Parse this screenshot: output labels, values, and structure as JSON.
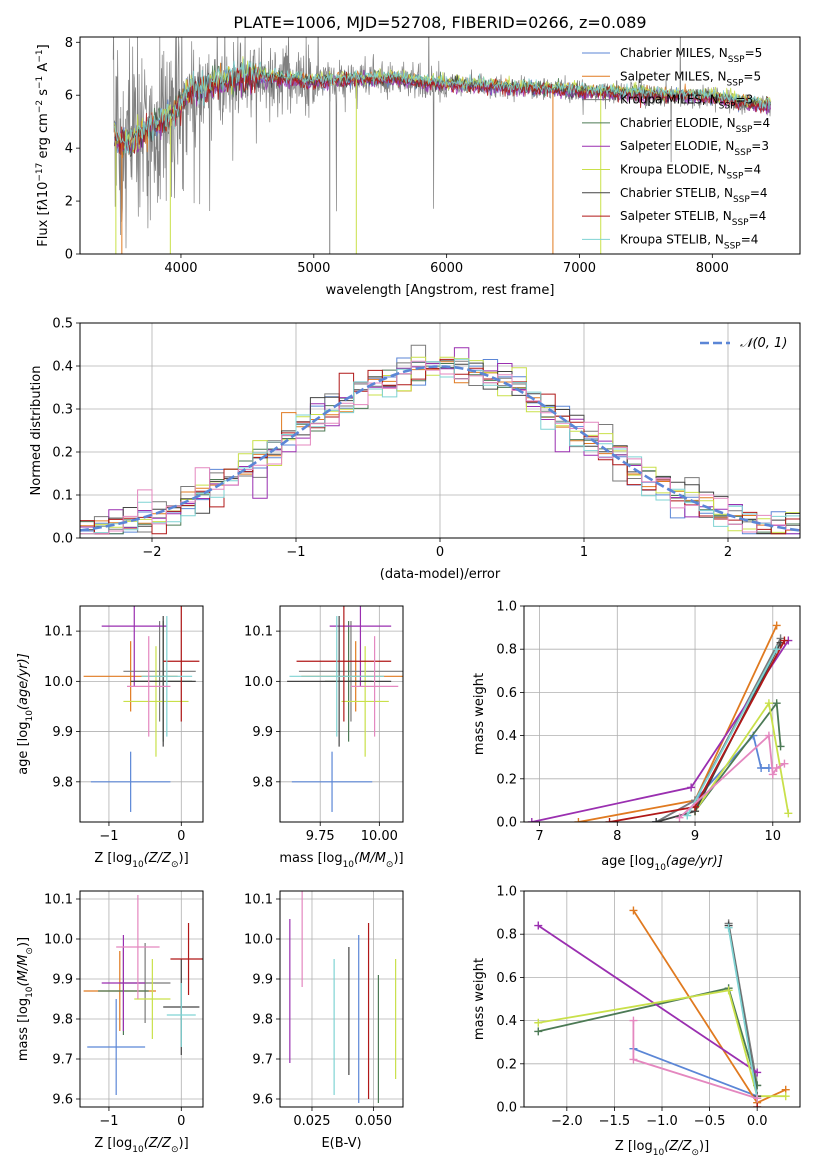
{
  "figure": {
    "title": "PLATE=1006, MJD=52708, FIBERID=0266, z=0.089"
  },
  "colors": {
    "Chabrier MILES": "#5b86d6",
    "Salpeter MILES": "#e07a20",
    "Kroupa MILES": "#7a7a7a",
    "Chabrier ELODIE": "#4c7a55",
    "Salpeter ELODIE": "#9a2fb0",
    "Kroupa ELODIE": "#c9e04a",
    "Chabrier STELIB": "#444444",
    "Salpeter STELIB": "#b01818",
    "Kroupa STELIB": "#7fd3d3",
    "extra": "#e487bf",
    "normal": "#5b86d6"
  },
  "chart_data": [
    {
      "id": "spectrum",
      "type": "line",
      "title": "PLATE=1006, MJD=52708, FIBERID=0266, z=0.089",
      "xlabel": "wavelength [Angstrom, rest frame]",
      "ylabel_parts": [
        "Flux [f",
        "λ",
        "10",
        "−17",
        " erg cm",
        "−2",
        " s",
        "−1",
        " A",
        "−1",
        "]"
      ],
      "xlim": [
        3240,
        8660
      ],
      "ylim": [
        0,
        8.2
      ],
      "xticks": [
        4000,
        5000,
        6000,
        7000,
        8000
      ],
      "yticks": [
        0,
        2,
        4,
        6,
        8
      ],
      "series": [
        {
          "name": "Chabrier MILES",
          "sub": "SSP",
          "n": 5
        },
        {
          "name": "Salpeter MILES",
          "sub": "SSP",
          "n": 5
        },
        {
          "name": "Kroupa MILES",
          "sub": "SSP",
          "n": 3
        },
        {
          "name": "Chabrier ELODIE",
          "sub": "SSP",
          "n": 4
        },
        {
          "name": "Salpeter ELODIE",
          "sub": "SSP",
          "n": 3
        },
        {
          "name": "Kroupa ELODIE",
          "sub": "SSP",
          "n": 4
        },
        {
          "name": "Chabrier STELIB",
          "sub": "SSP",
          "n": 4
        },
        {
          "name": "Salpeter STELIB",
          "sub": "SSP",
          "n": 4
        },
        {
          "name": "Kroupa STELIB",
          "sub": "SSP",
          "n": 4
        }
      ],
      "continuum": [
        [
          3500,
          4.3
        ],
        [
          3600,
          4.1
        ],
        [
          3700,
          4.5
        ],
        [
          3800,
          4.9
        ],
        [
          3950,
          5.3
        ],
        [
          4050,
          6.1
        ],
        [
          4300,
          6.5
        ],
        [
          4600,
          6.7
        ],
        [
          5000,
          6.5
        ],
        [
          5300,
          6.6
        ],
        [
          5600,
          6.6
        ],
        [
          6000,
          6.4
        ],
        [
          6400,
          6.3
        ],
        [
          6800,
          6.2
        ],
        [
          7200,
          6.1
        ],
        [
          7600,
          6.0
        ],
        [
          8000,
          5.9
        ],
        [
          8400,
          5.6
        ]
      ],
      "dropouts": [
        3510,
        3555,
        3920,
        5120,
        5320,
        6800,
        7160
      ]
    },
    {
      "id": "residuals",
      "type": "histogram",
      "xlabel": "(data-model)/error",
      "ylabel": "Normed distribution",
      "xlim": [
        -2.5,
        2.5
      ],
      "ylim": [
        0,
        0.5
      ],
      "xticks": [
        -2,
        -1,
        0,
        1,
        2
      ],
      "yticks": [
        0.0,
        0.1,
        0.2,
        0.3,
        0.4,
        0.5
      ],
      "bin_width": 0.1,
      "normal_label": "𝒩(0, 1)",
      "hist_colors": [
        "Chabrier MILES",
        "Salpeter MILES",
        "Kroupa MILES",
        "Chabrier ELODIE",
        "Salpeter ELODIE",
        "Kroupa ELODIE",
        "Chabrier STELIB",
        "Salpeter STELIB",
        "Kroupa STELIB",
        "extra"
      ]
    },
    {
      "id": "age_vs_Z",
      "type": "scatter",
      "xlabel_parts": [
        "Z [log",
        "10",
        "(Z/Z",
        "⊙",
        ")]"
      ],
      "ylabel_parts": [
        "age  [log",
        "10",
        "(age/yr)]"
      ],
      "xlim": [
        -1.4,
        0.3
      ],
      "ylim": [
        9.72,
        10.15
      ],
      "xticks": [
        -1,
        0
      ],
      "yticks": [
        9.8,
        9.9,
        10.0,
        10.1
      ],
      "points": [
        {
          "c": "Chabrier MILES",
          "x": -0.7,
          "xe": 0.55,
          "y": 9.8,
          "ye": 0.06
        },
        {
          "c": "Salpeter MILES",
          "x": -0.7,
          "xe": 0.65,
          "y": 10.01,
          "ye": 0.07
        },
        {
          "c": "Kroupa MILES",
          "x": -0.3,
          "xe": 0.5,
          "y": 10.02,
          "ye": 0.1
        },
        {
          "c": "Chabrier ELODIE",
          "x": -0.25,
          "xe": 0.4,
          "y": 10.0,
          "ye": 0.12
        },
        {
          "c": "Salpeter ELODIE",
          "x": -0.65,
          "xe": 0.45,
          "y": 10.11,
          "ye": 0.12
        },
        {
          "c": "Kroupa ELODIE",
          "x": -0.35,
          "xe": 0.45,
          "y": 9.96,
          "ye": 0.11
        },
        {
          "c": "Chabrier STELIB",
          "x": -0.25,
          "xe": 0.45,
          "y": 10.0,
          "ye": 0.13
        },
        {
          "c": "Salpeter STELIB",
          "x": 0.0,
          "xe": 0.25,
          "y": 10.04,
          "ye": 0.12
        },
        {
          "c": "Kroupa STELIB",
          "x": -0.2,
          "xe": 0.35,
          "y": 10.01,
          "ye": 0.12
        },
        {
          "c": "extra",
          "x": -0.45,
          "xe": 0.3,
          "y": 9.99,
          "ye": 0.1
        }
      ]
    },
    {
      "id": "age_vs_mass",
      "type": "scatter",
      "xlabel_parts": [
        "mass [log",
        "10",
        "(M/M",
        "⊙",
        ")]"
      ],
      "ylabel_parts": [],
      "xlim": [
        9.58,
        10.1
      ],
      "ylim": [
        9.72,
        10.15
      ],
      "xticks": [
        9.75,
        10.0
      ],
      "tick_labels": [
        "9.75",
        "10.00"
      ],
      "yticks": [
        9.8,
        9.9,
        10.0,
        10.1
      ],
      "points": [
        {
          "c": "Chabrier MILES",
          "x": 9.8,
          "xe": 0.17,
          "y": 9.8,
          "ye": 0.06
        },
        {
          "c": "Salpeter MILES",
          "x": 9.9,
          "xe": 0.23,
          "y": 10.01,
          "ye": 0.07
        },
        {
          "c": "Kroupa MILES",
          "x": 9.88,
          "xe": 0.22,
          "y": 10.02,
          "ye": 0.1
        },
        {
          "c": "Chabrier ELODIE",
          "x": 9.87,
          "xe": 0.1,
          "y": 10.0,
          "ye": 0.12
        },
        {
          "c": "Salpeter ELODIE",
          "x": 9.92,
          "xe": 0.13,
          "y": 10.11,
          "ye": 0.12
        },
        {
          "c": "Kroupa ELODIE",
          "x": 9.94,
          "xe": 0.1,
          "y": 9.96,
          "ye": 0.11
        },
        {
          "c": "Chabrier STELIB",
          "x": 9.83,
          "xe": 0.22,
          "y": 10.0,
          "ye": 0.13
        },
        {
          "c": "Salpeter STELIB",
          "x": 9.85,
          "xe": 0.2,
          "y": 10.04,
          "ye": 0.12
        },
        {
          "c": "Kroupa STELIB",
          "x": 9.82,
          "xe": 0.2,
          "y": 10.01,
          "ye": 0.12
        },
        {
          "c": "extra",
          "x": 9.98,
          "xe": 0.1,
          "y": 9.99,
          "ye": 0.1
        }
      ]
    },
    {
      "id": "mass_weight_vs_age",
      "type": "line",
      "xlabel_parts": [
        "age  [log",
        "10",
        "(age/yr)]"
      ],
      "ylabel": "mass weight",
      "xlim": [
        6.8,
        10.35
      ],
      "ylim": [
        0,
        1.0
      ],
      "xticks": [
        7,
        8,
        9,
        10
      ],
      "yticks": [
        0.0,
        0.2,
        0.4,
        0.6,
        0.8,
        1.0
      ],
      "series": [
        {
          "c": "Chabrier MILES",
          "pts": [
            [
              8.5,
              0.0
            ],
            [
              9.0,
              0.1
            ],
            [
              9.75,
              0.4
            ],
            [
              9.85,
              0.25
            ],
            [
              9.95,
              0.25
            ]
          ]
        },
        {
          "c": "Salpeter MILES",
          "pts": [
            [
              7.5,
              0.0
            ],
            [
              9.0,
              0.1
            ],
            [
              10.05,
              0.91
            ]
          ]
        },
        {
          "c": "Kroupa MILES",
          "pts": [
            [
              8.5,
              0.0
            ],
            [
              9.0,
              0.1
            ],
            [
              10.1,
              0.85
            ]
          ]
        },
        {
          "c": "Chabrier ELODIE",
          "pts": [
            [
              9.0,
              0.05
            ],
            [
              10.05,
              0.55
            ],
            [
              10.1,
              0.35
            ]
          ]
        },
        {
          "c": "Salpeter ELODIE",
          "pts": [
            [
              6.9,
              0.0
            ],
            [
              8.95,
              0.16
            ],
            [
              10.2,
              0.84
            ]
          ]
        },
        {
          "c": "Kroupa ELODIE",
          "pts": [
            [
              9.0,
              0.05
            ],
            [
              9.95,
              0.55
            ],
            [
              10.2,
              0.04
            ]
          ]
        },
        {
          "c": "Chabrier STELIB",
          "pts": [
            [
              8.5,
              0.0
            ],
            [
              9.0,
              0.05
            ],
            [
              10.1,
              0.83
            ]
          ]
        },
        {
          "c": "Salpeter STELIB",
          "pts": [
            [
              7.9,
              0.0
            ],
            [
              9.0,
              0.07
            ],
            [
              10.15,
              0.84
            ]
          ]
        },
        {
          "c": "Kroupa STELIB",
          "pts": [
            [
              8.9,
              0.03
            ],
            [
              10.05,
              0.8
            ]
          ]
        },
        {
          "c": "extra",
          "pts": [
            [
              8.8,
              0.02
            ],
            [
              9.95,
              0.4
            ],
            [
              10.0,
              0.22
            ],
            [
              10.05,
              0.25
            ],
            [
              10.15,
              0.27
            ]
          ]
        }
      ]
    },
    {
      "id": "mass_vs_Z",
      "type": "scatter",
      "xlabel_parts": [
        "Z [log",
        "10",
        "(Z/Z",
        "⊙",
        ")]"
      ],
      "ylabel_parts": [
        "mass [log",
        "10",
        "(M/M",
        "⊙",
        ")]"
      ],
      "xlim": [
        -1.4,
        0.3
      ],
      "ylim": [
        9.58,
        10.12
      ],
      "xticks": [
        -1,
        0
      ],
      "yticks": [
        9.6,
        9.7,
        9.8,
        9.9,
        10.0,
        10.1
      ],
      "points": [
        {
          "c": "Chabrier MILES",
          "x": -0.9,
          "xe": 0.4,
          "y": 9.73,
          "ye": 0.12
        },
        {
          "c": "Salpeter MILES",
          "x": -0.85,
          "xe": 0.5,
          "y": 9.87,
          "ye": 0.1
        },
        {
          "c": "Kroupa MILES",
          "x": -0.5,
          "xe": 0.35,
          "y": 9.89,
          "ye": 0.1
        },
        {
          "c": "Chabrier ELODIE",
          "x": -0.8,
          "xe": 0.35,
          "y": 9.87,
          "ye": 0.11
        },
        {
          "c": "Salpeter ELODIE",
          "x": -0.8,
          "xe": 0.3,
          "y": 9.89,
          "ye": 0.12
        },
        {
          "c": "Kroupa ELODIE",
          "x": -0.4,
          "xe": 0.25,
          "y": 9.85,
          "ye": 0.1
        },
        {
          "c": "Chabrier STELIB",
          "x": 0.0,
          "xe": 0.25,
          "y": 9.83,
          "ye": 0.12
        },
        {
          "c": "Salpeter STELIB",
          "x": 0.1,
          "xe": 0.25,
          "y": 9.95,
          "ye": 0.09
        },
        {
          "c": "Kroupa STELIB",
          "x": 0.0,
          "xe": 0.2,
          "y": 9.81,
          "ye": 0.08
        },
        {
          "c": "extra",
          "x": -0.6,
          "xe": 0.3,
          "y": 9.98,
          "ye": 0.13
        }
      ]
    },
    {
      "id": "mass_vs_EBV",
      "type": "scatter",
      "xlabel": "E(B-V)",
      "ylabel_parts": [],
      "xlim": [
        0.012,
        0.062
      ],
      "ylim": [
        9.58,
        10.12
      ],
      "xticks": [
        0.025,
        0.05
      ],
      "tick_labels": [
        "0.025",
        "0.050"
      ],
      "yticks": [
        9.6,
        9.7,
        9.8,
        9.9,
        10.0,
        10.1
      ],
      "points": [
        {
          "c": "Salpeter ELODIE",
          "x": 0.016,
          "y": 9.87,
          "ye": 0.18
        },
        {
          "c": "extra",
          "x": 0.021,
          "y": 10.0,
          "ye": 0.12
        },
        {
          "c": "Kroupa STELIB",
          "x": 0.034,
          "y": 9.78,
          "ye": 0.17
        },
        {
          "c": "Chabrier STELIB",
          "x": 0.04,
          "y": 9.82,
          "ye": 0.16
        },
        {
          "c": "Chabrier MILES",
          "x": 0.044,
          "y": 9.8,
          "ye": 0.21
        },
        {
          "c": "Salpeter STELIB",
          "x": 0.048,
          "y": 9.82,
          "ye": 0.22
        },
        {
          "c": "Chabrier ELODIE",
          "x": 0.052,
          "y": 9.75,
          "ye": 0.16
        },
        {
          "c": "Kroupa ELODIE",
          "x": 0.059,
          "y": 9.8,
          "ye": 0.15
        }
      ]
    },
    {
      "id": "mass_weight_vs_Z",
      "type": "line",
      "xlabel_parts": [
        "Z [log",
        "10",
        "(Z/Z",
        "⊙",
        ")]"
      ],
      "ylabel": "mass weight",
      "xlim": [
        -2.45,
        0.45
      ],
      "ylim": [
        0,
        1.0
      ],
      "xticks": [
        -2.0,
        -1.5,
        -1.0,
        -0.5,
        0.0
      ],
      "tick_labels": [
        "−2.0",
        "−1.5",
        "−1.0",
        "−0.5",
        "0.0"
      ],
      "yticks": [
        0.0,
        0.2,
        0.4,
        0.6,
        0.8,
        1.0
      ],
      "series": [
        {
          "c": "Chabrier MILES",
          "pts": [
            [
              -1.3,
              0.27
            ],
            [
              0.0,
              0.05
            ]
          ]
        },
        {
          "c": "Salpeter MILES",
          "pts": [
            [
              -1.3,
              0.91
            ],
            [
              0.0,
              0.02
            ],
            [
              0.3,
              0.08
            ]
          ]
        },
        {
          "c": "Kroupa MILES",
          "pts": [
            [
              -0.3,
              0.85
            ],
            [
              0.0,
              0.1
            ]
          ]
        },
        {
          "c": "Chabrier ELODIE",
          "pts": [
            [
              -2.3,
              0.35
            ],
            [
              -0.3,
              0.55
            ],
            [
              0.0,
              0.1
            ]
          ]
        },
        {
          "c": "Salpeter ELODIE",
          "pts": [
            [
              -2.3,
              0.84
            ],
            [
              0.0,
              0.16
            ]
          ]
        },
        {
          "c": "Kroupa ELODIE",
          "pts": [
            [
              -2.3,
              0.39
            ],
            [
              -0.3,
              0.54
            ],
            [
              0.0,
              0.05
            ],
            [
              0.3,
              0.05
            ]
          ]
        },
        {
          "c": "Chabrier STELIB",
          "pts": [
            [
              -0.3,
              0.84
            ],
            [
              0.0,
              0.05
            ]
          ]
        },
        {
          "c": "Salpeter STELIB",
          "pts": [
            [
              0.0,
              0.0
            ]
          ]
        },
        {
          "c": "Kroupa STELIB",
          "pts": [
            [
              -0.3,
              0.83
            ],
            [
              0.0,
              0.04
            ]
          ]
        },
        {
          "c": "extra",
          "pts": [
            [
              -1.3,
              0.4
            ],
            [
              -1.3,
              0.22
            ],
            [
              0.0,
              0.04
            ]
          ]
        }
      ]
    }
  ]
}
